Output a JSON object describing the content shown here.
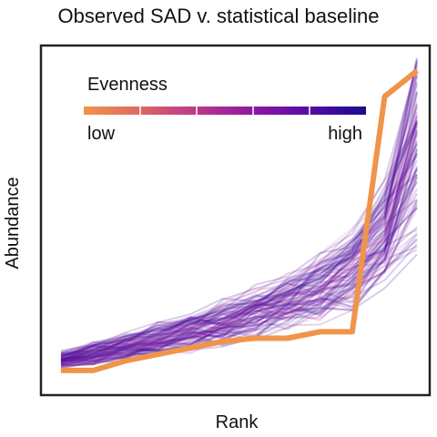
{
  "chart_data": {
    "type": "line",
    "title": "Observed SAD v. statistical baseline",
    "xlabel": "Rank",
    "ylabel": "Abundance",
    "x_ticks_shown": false,
    "y_ticks_shown": false,
    "xlim": [
      1,
      12
    ],
    "ylim": [
      0,
      1
    ],
    "grid": false,
    "legend": {
      "title": "Evenness",
      "low_label": "low",
      "high_label": "high",
      "placement": "top-left",
      "colormap": [
        "#f0944a",
        "#e2705e",
        "#c8467b",
        "#a52597",
        "#7e13a6",
        "#4c0aa4",
        "#1b0c8c"
      ]
    },
    "observed": {
      "name": "Observed",
      "color": "#f0944a",
      "x": [
        1,
        2,
        3,
        4,
        5,
        6,
        7,
        8,
        9,
        10,
        11,
        12
      ],
      "values": [
        0.02,
        0.02,
        0.05,
        0.07,
        0.09,
        0.11,
        0.12,
        0.12,
        0.14,
        0.14,
        0.87,
        0.95
      ]
    },
    "baseline": {
      "name": "Statistical baseline",
      "count": 90,
      "x": [
        1,
        2,
        3,
        4,
        5,
        6,
        7,
        8,
        9,
        10,
        11,
        12
      ],
      "mean_values": [
        0.05,
        0.07,
        0.09,
        0.11,
        0.13,
        0.16,
        0.19,
        0.22,
        0.26,
        0.32,
        0.42,
        0.62
      ],
      "spread": 0.08
    }
  }
}
